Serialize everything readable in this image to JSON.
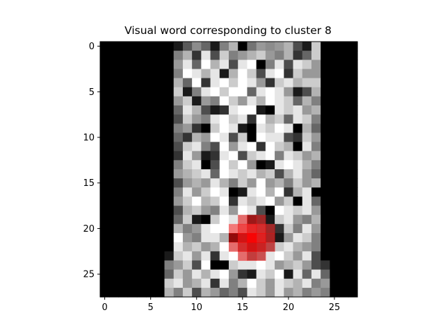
{
  "chart_data": {
    "type": "heatmap",
    "title": "Visual word corresponding to cluster 8",
    "xlabel": "",
    "ylabel": "",
    "colormap": "gray",
    "highlight_color": "#ff0000",
    "highlight_center": [
      16,
      21
    ],
    "highlight_radius": 2,
    "xlim": [
      -0.5,
      27.5
    ],
    "ylim": [
      27.5,
      -0.5
    ],
    "xticks": [
      0,
      5,
      10,
      15,
      20,
      25
    ],
    "yticks": [
      0,
      5,
      10,
      15,
      20,
      25
    ],
    "xtick_labels": [
      "0",
      "5",
      "10",
      "15",
      "20",
      "25"
    ],
    "ytick_labels": [
      "0",
      "5",
      "10",
      "15",
      "20",
      "25"
    ],
    "grid": false,
    "rows": 28,
    "cols": 28,
    "values": [
      [
        0,
        0,
        0,
        0,
        0,
        0,
        0,
        0,
        0.1,
        0.35,
        0.55,
        0.4,
        0.1,
        0.5,
        0.7,
        0,
        0.45,
        0.6,
        0.55,
        0.6,
        0.7,
        0.3,
        0.1,
        0.8,
        0,
        0,
        0,
        0
      ],
      [
        0,
        0,
        0,
        0,
        0,
        0,
        0,
        0,
        0.5,
        0.7,
        0.2,
        0.9,
        0.3,
        0.8,
        0.5,
        0.6,
        0.7,
        0.8,
        0.6,
        0.5,
        0.7,
        0.2,
        0.4,
        0.8,
        0,
        0,
        0,
        0
      ],
      [
        0,
        0,
        0,
        0,
        0,
        0,
        0,
        0,
        0.6,
        0.9,
        0.4,
        1,
        0.7,
        0.9,
        0.3,
        0.9,
        1,
        0,
        0.5,
        0.9,
        0.3,
        0.9,
        0.8,
        0.6,
        0,
        0,
        0,
        0
      ],
      [
        0,
        0,
        0,
        0,
        0,
        0,
        0,
        0,
        0.5,
        1,
        0.9,
        0.7,
        0.9,
        0.1,
        0.7,
        1,
        0.8,
        0.3,
        0.9,
        1,
        0.2,
        0.8,
        0.6,
        0.6,
        0,
        0,
        0,
        0
      ],
      [
        0,
        0,
        0,
        0,
        0,
        0,
        0,
        0,
        0.7,
        0.4,
        1,
        0.2,
        0.9,
        1,
        0.8,
        1,
        0.9,
        0.6,
        0.2,
        0.8,
        0.9,
        0.7,
        0.8,
        0.8,
        0,
        0,
        0,
        0
      ],
      [
        0,
        0,
        0,
        0,
        0,
        0,
        0,
        0,
        0.8,
        0.1,
        0.5,
        0.9,
        1,
        0.8,
        1,
        1,
        0.4,
        0.9,
        1,
        0.9,
        0.6,
        0.1,
        0.3,
        0.7,
        0,
        0,
        0,
        0
      ],
      [
        0,
        0,
        0,
        0,
        0,
        0,
        0,
        0,
        0.6,
        0.8,
        0.1,
        0.6,
        0.5,
        1,
        0.8,
        0.6,
        0.9,
        0.7,
        1,
        0.9,
        0.8,
        0.4,
        0.7,
        0.5,
        0,
        0,
        0,
        0
      ],
      [
        0,
        0,
        0,
        0,
        0,
        0,
        0,
        0,
        0.4,
        0.9,
        0.7,
        0.3,
        0.1,
        0.2,
        0.9,
        1,
        1,
        0.1,
        0,
        0.9,
        0.8,
        0.9,
        0.6,
        0.7,
        0,
        0,
        0,
        0
      ],
      [
        0,
        0,
        0,
        0,
        0,
        0,
        0,
        0,
        0.3,
        0.8,
        0.6,
        0.5,
        0.9,
        1,
        0.8,
        0.9,
        0.2,
        1,
        0.7,
        0.8,
        0.4,
        0.9,
        0.8,
        0.5,
        0,
        0,
        0,
        0
      ],
      [
        0,
        0,
        0,
        0,
        0,
        0,
        0,
        0,
        0.5,
        0.6,
        0.2,
        0,
        0.8,
        1,
        0.9,
        0.1,
        0,
        0.9,
        0.8,
        1,
        0.9,
        0,
        0.7,
        0.4,
        0,
        0,
        0,
        0
      ],
      [
        0,
        0,
        0,
        0,
        0,
        0,
        0,
        0,
        0.4,
        0.2,
        0.7,
        0.6,
        1,
        0.9,
        0.3,
        0.8,
        0,
        1,
        0.9,
        0.9,
        0.3,
        0.2,
        0.8,
        0.6,
        0,
        0,
        0,
        0
      ],
      [
        0,
        0,
        0,
        0,
        0,
        0,
        0,
        0,
        0.3,
        0.8,
        0.9,
        0.5,
        0.3,
        1,
        0.6,
        0.9,
        1,
        0.2,
        1,
        0.8,
        0.7,
        0,
        0.9,
        0.5,
        0,
        0,
        0,
        0
      ],
      [
        0,
        0,
        0,
        0,
        0,
        0,
        0,
        0,
        0.2,
        0.9,
        0.6,
        0.1,
        0.2,
        0.9,
        1,
        0.3,
        0.8,
        0.9,
        1,
        0.5,
        0.9,
        0.8,
        0.6,
        0.7,
        0,
        0,
        0,
        0
      ],
      [
        0,
        0,
        0,
        0,
        0,
        0,
        0,
        0,
        0.5,
        0.8,
        0.9,
        0,
        0.3,
        1,
        0.8,
        1,
        0.6,
        0,
        0.1,
        0.9,
        1,
        0.9,
        0.7,
        0.5,
        0,
        0,
        0,
        0
      ],
      [
        0,
        0,
        0,
        0,
        0,
        0,
        0,
        0,
        0.6,
        0.7,
        0.8,
        0.9,
        0.4,
        1,
        0.9,
        0.8,
        0.9,
        0.7,
        0.8,
        0.3,
        0.7,
        0.9,
        0.6,
        0.4,
        0,
        0,
        0,
        0
      ],
      [
        0,
        0,
        0,
        0,
        0,
        0,
        0,
        0,
        0.3,
        0.6,
        0.7,
        0.6,
        0.9,
        0.7,
        0.5,
        0.8,
        0.6,
        1,
        0.6,
        0.7,
        0.5,
        0.8,
        0.6,
        0.7,
        0,
        0,
        0,
        0
      ],
      [
        0,
        0,
        0,
        0,
        0,
        0,
        0,
        0,
        0.5,
        0.9,
        0.6,
        0.8,
        1,
        0.9,
        0,
        0.1,
        0.9,
        1,
        0.7,
        1,
        0.2,
        0.7,
        0.9,
        0,
        0,
        0,
        0,
        0
      ],
      [
        0,
        0,
        0,
        0,
        0,
        0,
        0,
        0,
        0.6,
        0.8,
        1,
        0.7,
        0.8,
        1,
        0.2,
        0.9,
        0.8,
        0.9,
        1,
        0.6,
        0.8,
        0,
        0.9,
        0.4,
        0,
        0,
        0,
        0
      ],
      [
        0,
        0,
        0,
        0,
        0,
        0,
        0,
        0,
        0.3,
        0.7,
        0.8,
        0.6,
        0.5,
        0.9,
        0.6,
        1,
        0.9,
        0.3,
        0,
        1,
        0.9,
        0.8,
        0.9,
        0.6,
        0,
        0,
        0,
        0
      ],
      [
        0,
        0,
        0,
        0,
        0,
        0,
        0,
        0,
        0.4,
        0.8,
        0.1,
        0,
        0.8,
        1,
        0.9,
        0.8,
        0.2,
        0.3,
        0.1,
        0.8,
        0.9,
        0.6,
        0.5,
        0.7,
        0,
        0,
        0,
        0
      ],
      [
        0,
        0,
        0,
        0,
        0,
        0,
        0,
        0,
        0.7,
        0.5,
        0.6,
        0.9,
        1,
        1,
        0.9,
        0.8,
        0.6,
        0.5,
        0.3,
        0.2,
        0.8,
        0.5,
        0.9,
        0.6,
        0,
        0,
        0,
        0
      ],
      [
        0,
        0,
        0,
        0,
        0,
        0,
        0,
        0,
        1,
        0.6,
        0.5,
        0.9,
        0.9,
        0.7,
        0.1,
        0.3,
        0.4,
        0.5,
        0.3,
        0.1,
        0.6,
        0.9,
        0.8,
        0.5,
        0,
        0,
        0,
        0
      ],
      [
        0,
        0,
        0,
        0,
        0,
        0,
        0,
        0,
        0.9,
        0.7,
        0.8,
        0.6,
        0.7,
        1,
        0.8,
        0.5,
        0.3,
        0.4,
        0.5,
        0.8,
        0.9,
        0.7,
        0.6,
        0.5,
        0,
        0,
        0,
        0
      ],
      [
        0,
        0,
        0,
        0,
        0,
        0,
        0,
        0.1,
        0.8,
        0.9,
        0.6,
        0.9,
        0.2,
        0.9,
        1,
        0.8,
        0.5,
        0.6,
        0.9,
        1,
        0.8,
        0.6,
        0.9,
        0.3,
        0,
        0,
        0,
        0
      ],
      [
        0,
        0,
        0,
        0,
        0,
        0,
        0,
        0.5,
        0.6,
        0.8,
        0.3,
        1,
        0,
        0,
        0.8,
        0.9,
        0.9,
        1,
        0.9,
        0.6,
        0.7,
        0.8,
        0.6,
        0.3,
        0.2,
        0,
        0,
        0
      ],
      [
        0,
        0,
        0,
        0,
        0,
        0,
        0,
        0.4,
        0.8,
        0.6,
        0.9,
        0.7,
        0.9,
        1,
        0.6,
        0.2,
        0.1,
        0.9,
        0.8,
        1,
        0.1,
        0.9,
        0.4,
        0.9,
        0.4,
        0,
        0,
        0
      ],
      [
        0,
        0,
        0,
        0,
        0,
        0,
        0,
        0.8,
        0.9,
        0.6,
        0.7,
        0.9,
        0.2,
        0.9,
        0.5,
        0.7,
        1,
        0.8,
        0.6,
        0.9,
        0.8,
        0.7,
        0.9,
        0.5,
        0.6,
        0,
        0,
        0
      ],
      [
        0,
        0,
        0,
        0,
        0,
        0,
        0,
        0.7,
        0.5,
        0.8,
        0.3,
        0.7,
        0.6,
        0.4,
        0.5,
        0.3,
        0.9,
        0.8,
        0.6,
        0.9,
        0.6,
        0.7,
        0.5,
        0.6,
        0.5,
        0,
        0,
        0
      ]
    ]
  }
}
